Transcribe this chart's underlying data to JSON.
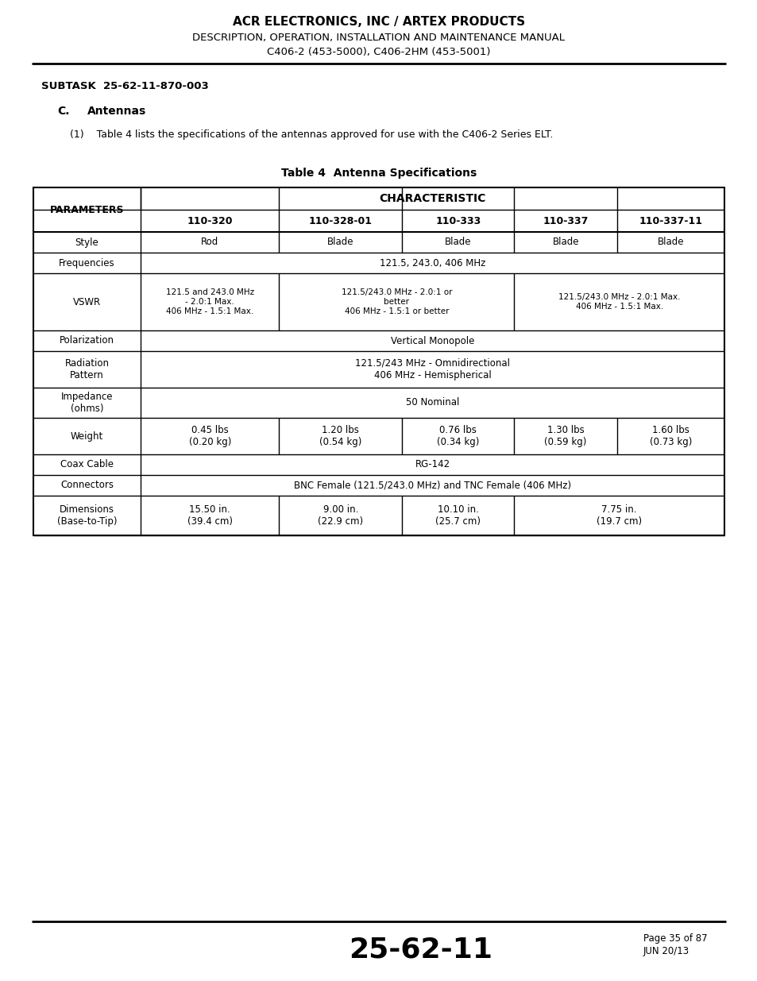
{
  "header_line1": "ACR ELECTRONICS, INC / ARTEX PRODUCTS",
  "header_line2": "DESCRIPTION, OPERATION, INSTALLATION AND MAINTENANCE MANUAL",
  "header_line3": "C406-2 (453-5000), C406-2HM (453-5001)",
  "subtask": "SUBTASK  25-62-11-870-003",
  "section_label": "C.",
  "section_title": "Antennas",
  "paragraph": "(1)    Table 4 lists the specifications of the antennas approved for use with the C406-2 Series ELT.",
  "table_title": "Table 4  Antenna Specifications",
  "footer_center": "25-62-11",
  "footer_right1": "Page 35 of 87",
  "footer_right2": "JUN 20/13",
  "col_headers": [
    "PARAMETERS",
    "110-320",
    "110-328-01",
    "110-333",
    "110-337",
    "110-337-11"
  ],
  "char_header": "CHARACTERISTIC",
  "rows": [
    {
      "param": "Style",
      "vals": [
        "Rod",
        "Blade",
        "Blade",
        "Blade",
        "Blade"
      ],
      "span": "none"
    },
    {
      "param": "Frequencies",
      "vals": [
        "121.5, 243.0, 406 MHz"
      ],
      "span": "all"
    },
    {
      "param": "VSWR",
      "vals": [
        "121.5 and 243.0 MHz\n- 2.0:1 Max.\n406 MHz - 1.5:1 Max.",
        "121.5/243.0 MHz - 2.0:1 or\nbetter\n406 MHz - 1.5:1 or better",
        null,
        "121.5/243.0 MHz - 2.0:1 Max.\n406 MHz - 1.5:1 Max.",
        null
      ],
      "span": "vswr"
    },
    {
      "param": "Polarization",
      "vals": [
        "Vertical Monopole"
      ],
      "span": "all"
    },
    {
      "param": "Radiation\nPattern",
      "vals": [
        "121.5/243 MHz - Omnidirectional\n406 MHz - Hemispherical"
      ],
      "span": "all"
    },
    {
      "param": "Impedance\n(ohms)",
      "vals": [
        "50 Nominal"
      ],
      "span": "all"
    },
    {
      "param": "Weight",
      "vals": [
        "0.45 lbs\n(0.20 kg)",
        "1.20 lbs\n(0.54 kg)",
        "0.76 lbs\n(0.34 kg)",
        "1.30 lbs\n(0.59 kg)",
        "1.60 lbs\n(0.73 kg)"
      ],
      "span": "none"
    },
    {
      "param": "Coax Cable",
      "vals": [
        "RG-142"
      ],
      "span": "all"
    },
    {
      "param": "Connectors",
      "vals": [
        "BNC Female (121.5/243.0 MHz) and TNC Female (406 MHz)"
      ],
      "span": "all"
    },
    {
      "param": "Dimensions\n(Base-to-Tip)",
      "vals": [
        "15.50 in.\n(39.4 cm)",
        "9.00 in.\n(22.9 cm)",
        "10.10 in.\n(25.7 cm)",
        "7.75 in.\n(19.7 cm)",
        null
      ],
      "span": "dim"
    }
  ]
}
